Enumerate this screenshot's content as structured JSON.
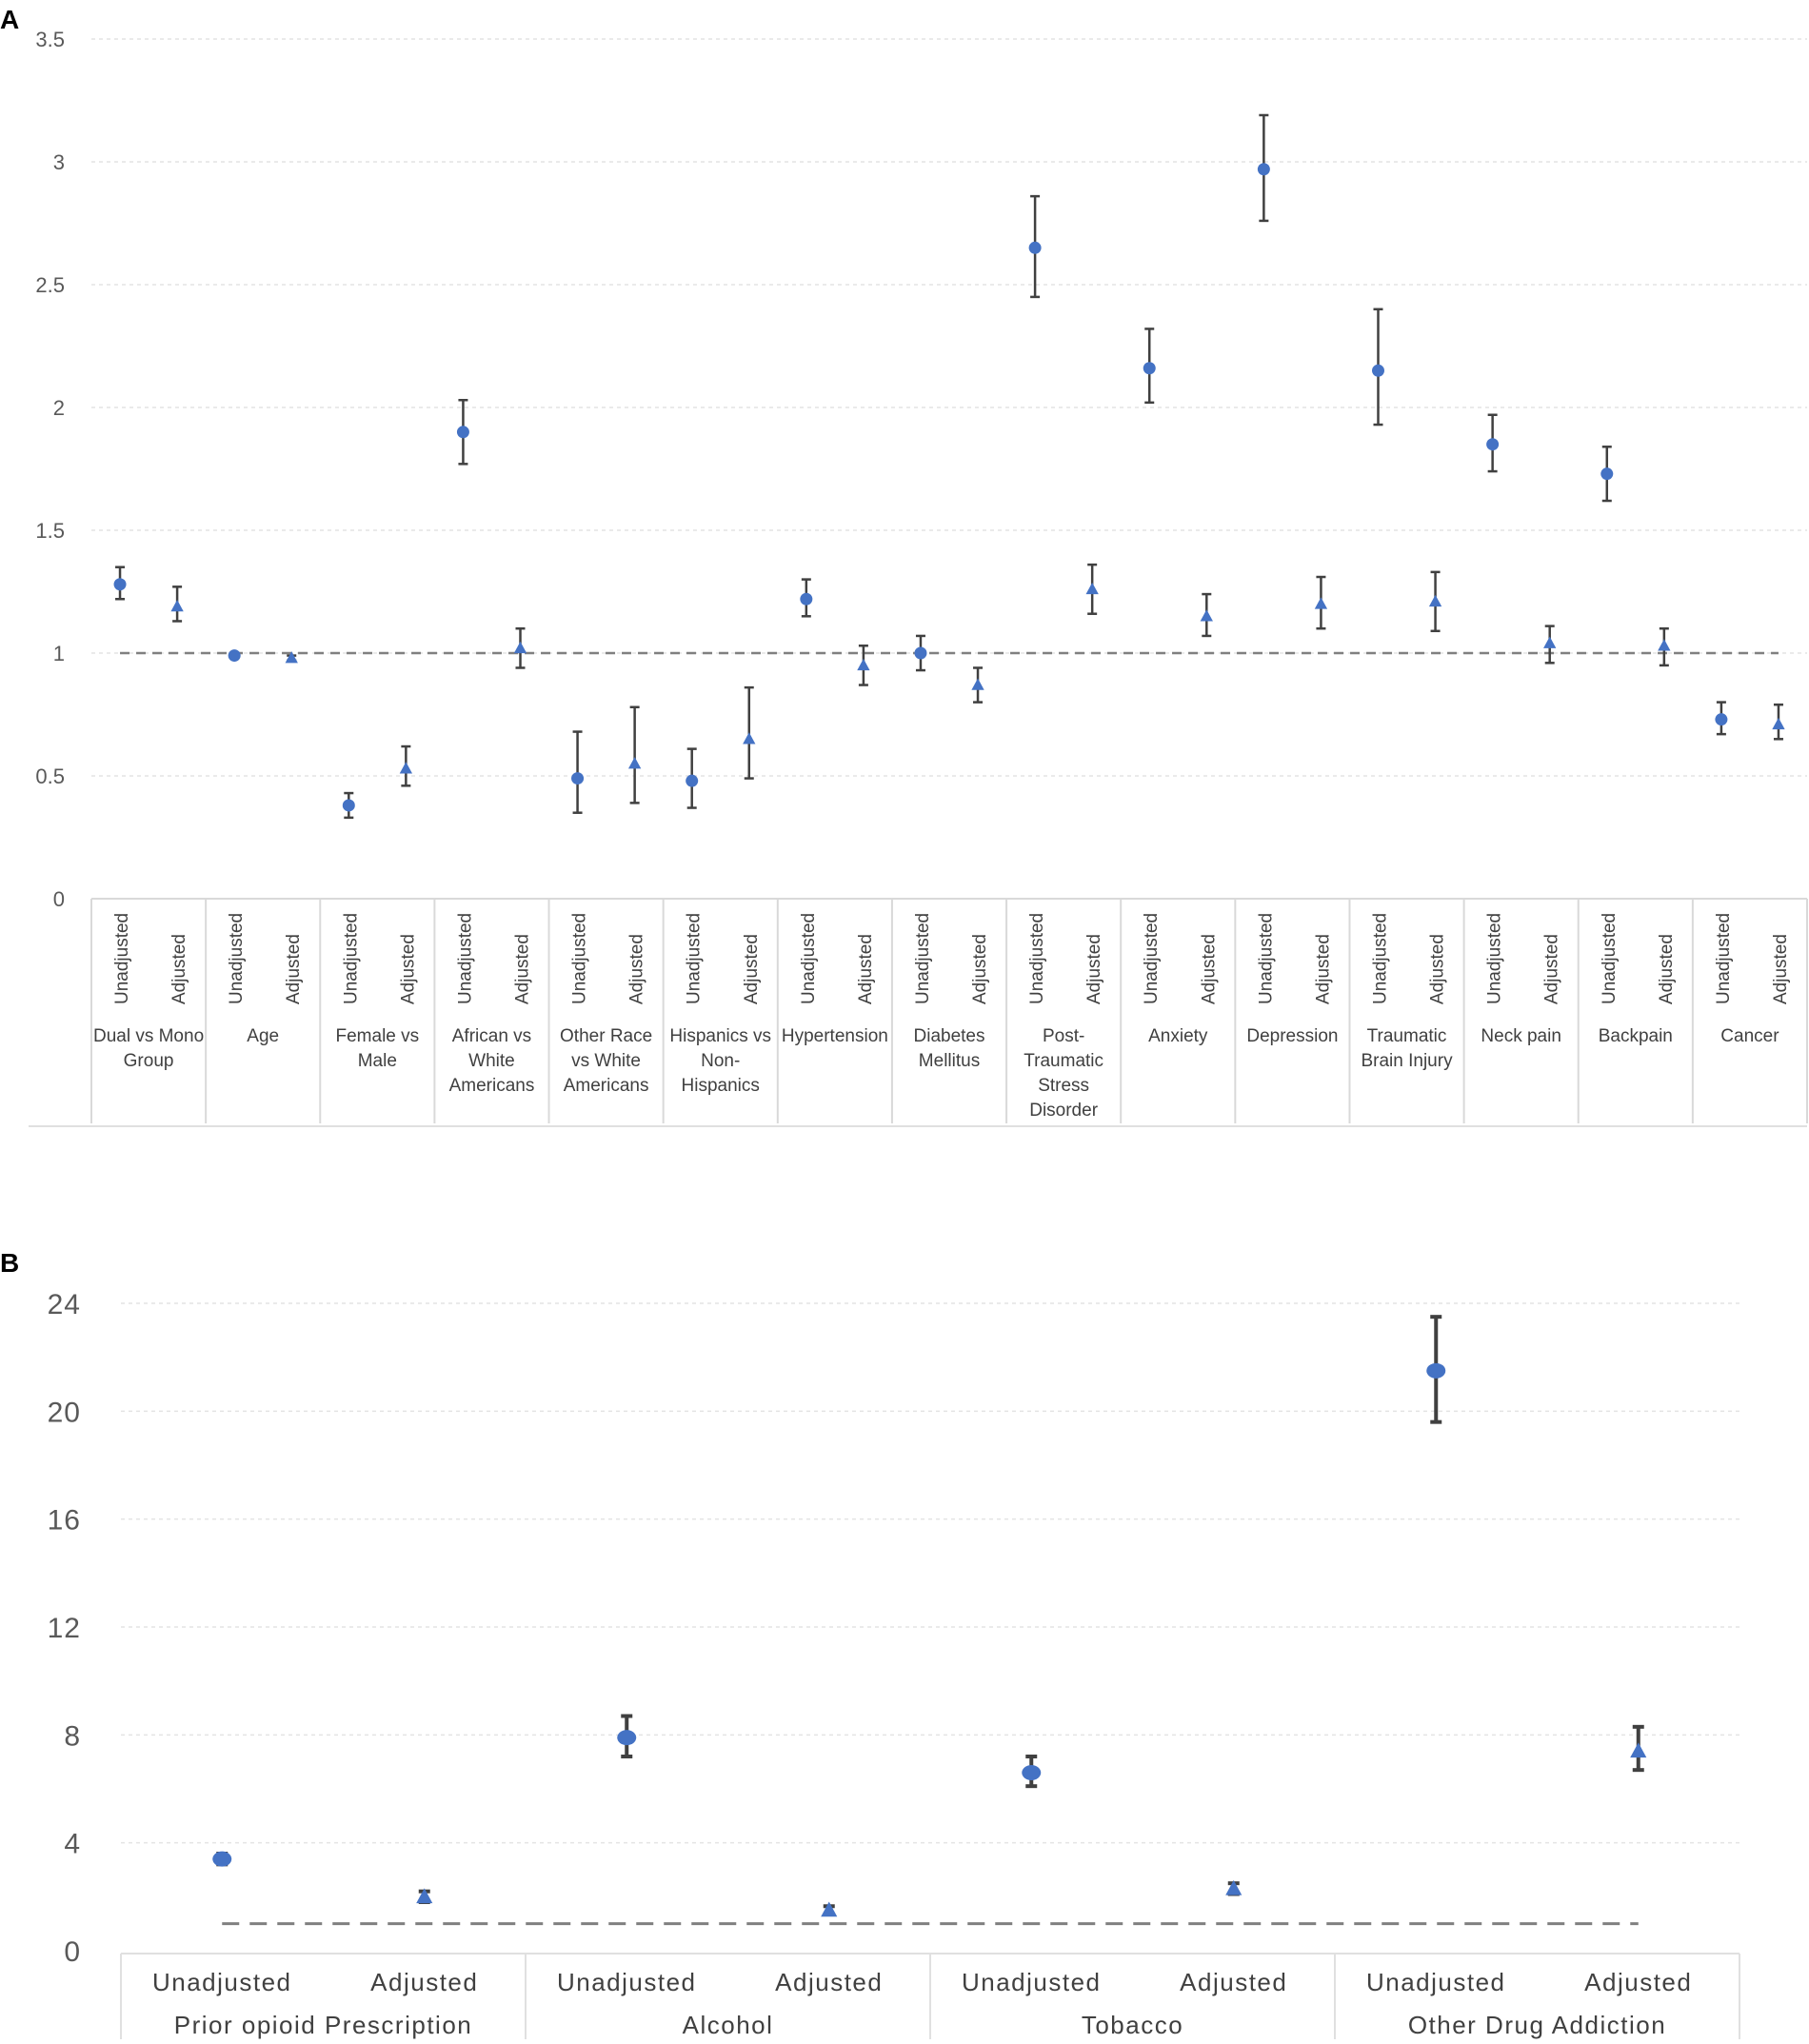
{
  "chart_data": [
    {
      "panel_label": "A",
      "type": "scatter",
      "title": "",
      "xlabel": "",
      "ylabel": "",
      "ylim": [
        0,
        3.5
      ],
      "yticks": [
        "0",
        "0.5",
        "1",
        "1.5",
        "2",
        "2.5",
        "3",
        "3.5"
      ],
      "reference_line": 1,
      "grid": true,
      "marker_colors": {
        "points": "#4472C4",
        "error_bars": "#404040",
        "reference": "#808080"
      },
      "sublabels": [
        "Unadjusted",
        "Adjusted"
      ],
      "groups": [
        {
          "label": "Dual vs Mono Group",
          "unadjusted": {
            "y": 1.28,
            "low": 1.22,
            "high": 1.35
          },
          "adjusted": {
            "y": 1.19,
            "low": 1.13,
            "high": 1.27
          }
        },
        {
          "label": "Age",
          "unadjusted": {
            "y": 0.99,
            "low": 0.98,
            "high": 1.0
          },
          "adjusted": {
            "y": 0.98,
            "low": 0.97,
            "high": 0.99
          }
        },
        {
          "label": "Female vs Male",
          "unadjusted": {
            "y": 0.38,
            "low": 0.33,
            "high": 0.43
          },
          "adjusted": {
            "y": 0.53,
            "low": 0.46,
            "high": 0.62
          }
        },
        {
          "label": "African vs White Americans",
          "unadjusted": {
            "y": 1.9,
            "low": 1.77,
            "high": 2.03
          },
          "adjusted": {
            "y": 1.02,
            "low": 0.94,
            "high": 1.1
          }
        },
        {
          "label": "Other Race vs White Americans",
          "unadjusted": {
            "y": 0.49,
            "low": 0.35,
            "high": 0.68
          },
          "adjusted": {
            "y": 0.55,
            "low": 0.39,
            "high": 0.78
          }
        },
        {
          "label": "Hispanics vs Non-Hispanics",
          "unadjusted": {
            "y": 0.48,
            "low": 0.37,
            "high": 0.61
          },
          "adjusted": {
            "y": 0.65,
            "low": 0.49,
            "high": 0.86
          }
        },
        {
          "label": "Hypertension",
          "unadjusted": {
            "y": 1.22,
            "low": 1.15,
            "high": 1.3
          },
          "adjusted": {
            "y": 0.95,
            "low": 0.87,
            "high": 1.03
          }
        },
        {
          "label": "Diabetes Mellitus",
          "unadjusted": {
            "y": 1.0,
            "low": 0.93,
            "high": 1.07
          },
          "adjusted": {
            "y": 0.87,
            "low": 0.8,
            "high": 0.94
          }
        },
        {
          "label": "Post-Traumatic Stress Disorder",
          "unadjusted": {
            "y": 2.65,
            "low": 2.45,
            "high": 2.86
          },
          "adjusted": {
            "y": 1.26,
            "low": 1.16,
            "high": 1.36
          }
        },
        {
          "label": "Anxiety",
          "unadjusted": {
            "y": 2.16,
            "low": 2.02,
            "high": 2.32
          },
          "adjusted": {
            "y": 1.15,
            "low": 1.07,
            "high": 1.24
          }
        },
        {
          "label": "Depression",
          "unadjusted": {
            "y": 2.97,
            "low": 2.76,
            "high": 3.19
          },
          "adjusted": {
            "y": 1.2,
            "low": 1.1,
            "high": 1.31
          }
        },
        {
          "label": "Traumatic Brain Injury",
          "unadjusted": {
            "y": 2.15,
            "low": 1.93,
            "high": 2.4
          },
          "adjusted": {
            "y": 1.21,
            "low": 1.09,
            "high": 1.33
          }
        },
        {
          "label": "Neck pain",
          "unadjusted": {
            "y": 1.85,
            "low": 1.74,
            "high": 1.97
          },
          "adjusted": {
            "y": 1.04,
            "low": 0.96,
            "high": 1.11
          }
        },
        {
          "label": "Backpain",
          "unadjusted": {
            "y": 1.73,
            "low": 1.62,
            "high": 1.84
          },
          "adjusted": {
            "y": 1.03,
            "low": 0.95,
            "high": 1.1
          }
        },
        {
          "label": "Cancer",
          "unadjusted": {
            "y": 0.73,
            "low": 0.67,
            "high": 0.8
          },
          "adjusted": {
            "y": 0.71,
            "low": 0.65,
            "high": 0.79
          }
        }
      ]
    },
    {
      "panel_label": "B",
      "type": "scatter",
      "title": "",
      "xlabel": "",
      "ylabel": "",
      "ylim": [
        0,
        24
      ],
      "yticks": [
        "0",
        "4",
        "8",
        "12",
        "16",
        "20",
        "24"
      ],
      "reference_line": 1,
      "grid": true,
      "marker_colors": {
        "points": "#4472C4",
        "error_bars": "#404040",
        "reference": "#808080"
      },
      "sublabels": [
        "Unadjusted",
        "Adjusted"
      ],
      "groups": [
        {
          "label": "Prior opioid Prescription",
          "unadjusted": {
            "y": 3.4,
            "low": 3.2,
            "high": 3.6
          },
          "adjusted": {
            "y": 2.0,
            "low": 1.8,
            "high": 2.2
          }
        },
        {
          "label": "Alcohol",
          "unadjusted": {
            "y": 7.9,
            "low": 7.2,
            "high": 8.7
          },
          "adjusted": {
            "y": 1.5,
            "low": 1.35,
            "high": 1.65
          }
        },
        {
          "label": "Tobacco",
          "unadjusted": {
            "y": 6.6,
            "low": 6.1,
            "high": 7.2
          },
          "adjusted": {
            "y": 2.3,
            "low": 2.1,
            "high": 2.5
          }
        },
        {
          "label": "Other Drug Addiction",
          "unadjusted": {
            "y": 21.5,
            "low": 19.6,
            "high": 23.5
          },
          "adjusted": {
            "y": 7.4,
            "low": 6.7,
            "high": 8.3
          }
        }
      ]
    }
  ]
}
